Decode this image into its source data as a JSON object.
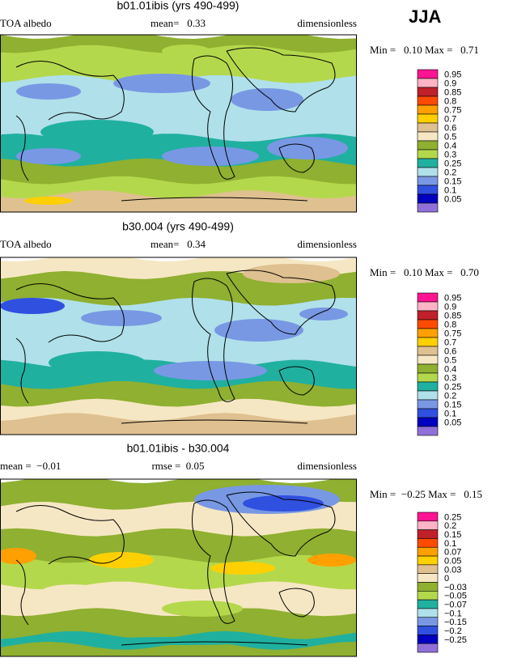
{
  "season": "JJA",
  "panels": [
    {
      "title": "b01.01ibis (yrs 490-499)",
      "left": "TOA albedo",
      "center": "mean=   0.33",
      "right": "dimensionless",
      "minmax": "Min =   0.10 Max =   0.71",
      "colorbar": {
        "labels": [
          "0.95",
          "0.9",
          "0.85",
          "0.8",
          "0.75",
          "0.7",
          "0.6",
          "0.5",
          "0.4",
          "0.3",
          "0.25",
          "0.2",
          "0.15",
          "0.1",
          "0.05"
        ],
        "colors": [
          "#ff1493",
          "#ffb3c6",
          "#c0202a",
          "#ff4a00",
          "#ffa000",
          "#ffd000",
          "#dfc090",
          "#f6e7c4",
          "#8fb030",
          "#b4d84c",
          "#20b0a0",
          "#b0e0ea",
          "#7898e4",
          "#3050e0",
          "#0000c0",
          "#9070d8"
        ]
      }
    },
    {
      "title": "b30.004 (yrs 490-499)",
      "left": "TOA albedo",
      "center": "mean=   0.34",
      "right": "dimensionless",
      "minmax": "Min =   0.10 Max =   0.70",
      "colorbar": {
        "labels": [
          "0.95",
          "0.9",
          "0.85",
          "0.8",
          "0.75",
          "0.7",
          "0.6",
          "0.5",
          "0.4",
          "0.3",
          "0.25",
          "0.2",
          "0.15",
          "0.1",
          "0.05"
        ],
        "colors": [
          "#ff1493",
          "#ffb3c6",
          "#c0202a",
          "#ff4a00",
          "#ffa000",
          "#ffd000",
          "#dfc090",
          "#f6e7c4",
          "#8fb030",
          "#b4d84c",
          "#20b0a0",
          "#b0e0ea",
          "#7898e4",
          "#3050e0",
          "#0000c0",
          "#9070d8"
        ]
      }
    },
    {
      "title": "b01.01ibis - b30.004",
      "left": "mean =  −0.01",
      "center": "rmse =  0.05",
      "right": "dimensionless",
      "minmax": "Min =  −0.25 Max =   0.15",
      "colorbar": {
        "labels": [
          "0.25",
          "0.2",
          "0.15",
          "0.1",
          "0.07",
          "0.05",
          "0.03",
          "0",
          "−0.03",
          "−0.05",
          "−0.07",
          "−0.1",
          "−0.15",
          "−0.2",
          "−0.25"
        ],
        "colors": [
          "#ff1493",
          "#ffb3c6",
          "#c0202a",
          "#ff4a00",
          "#ffa000",
          "#ffd000",
          "#dfc090",
          "#f6e7c4",
          "#8fb030",
          "#b4d84c",
          "#20b0a0",
          "#b0e0ea",
          "#7898e4",
          "#3050e0",
          "#0000c0",
          "#9070d8"
        ]
      }
    }
  ]
}
